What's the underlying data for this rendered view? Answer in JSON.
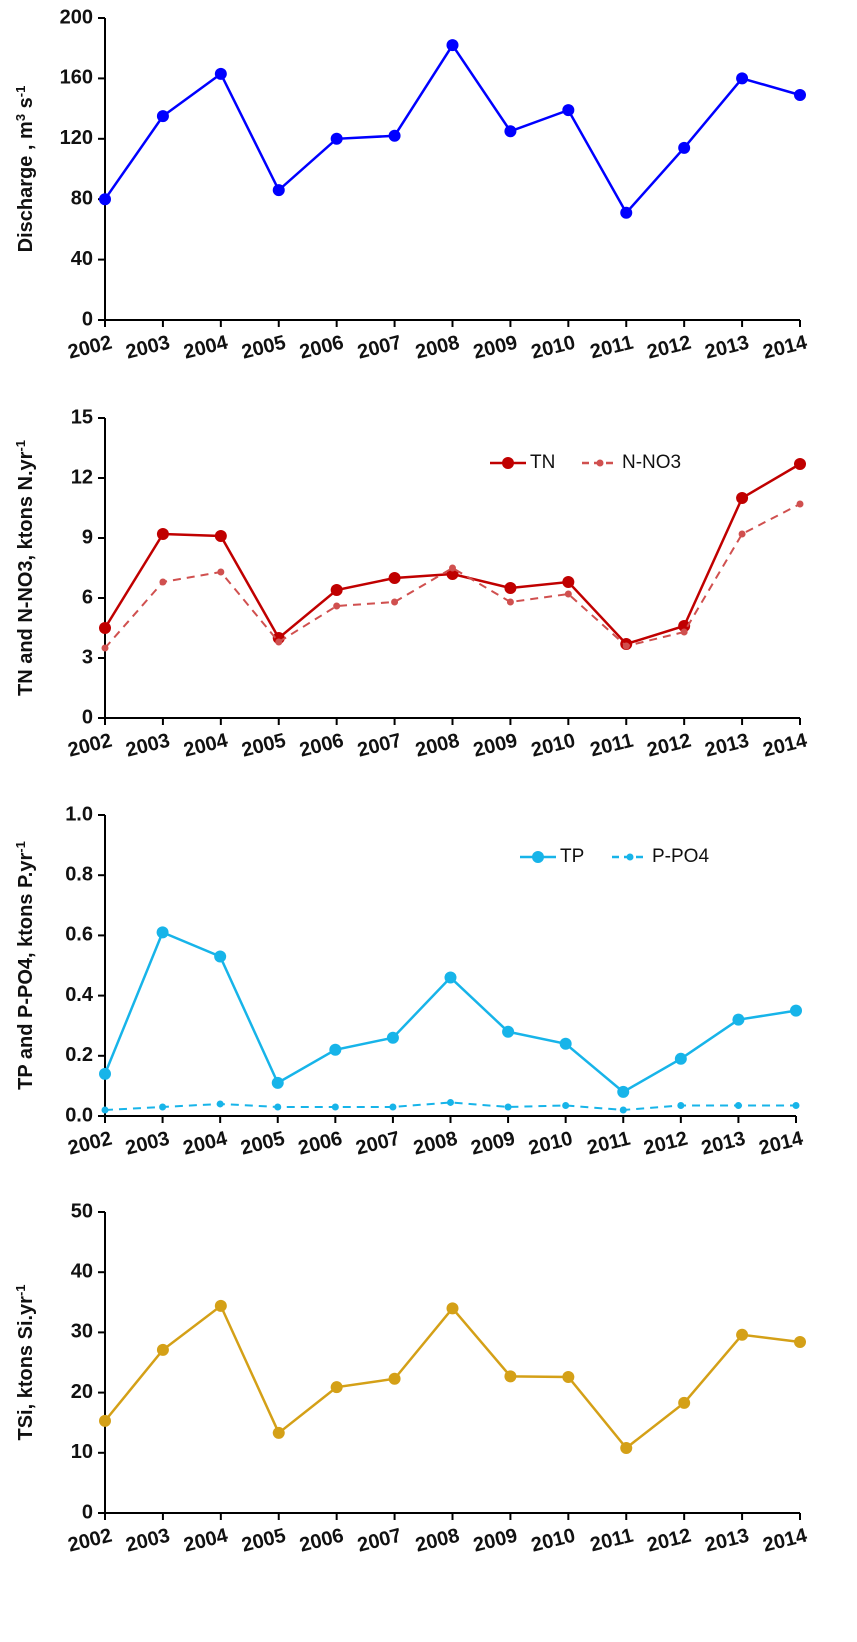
{
  "chart_data": [
    {
      "type": "line",
      "x": [
        "2002",
        "2003",
        "2004",
        "2005",
        "2006",
        "2007",
        "2008",
        "2009",
        "2010",
        "2011",
        "2012",
        "2013",
        "2014"
      ],
      "ylabel": "Discharge , m",
      "ylabel_sup1": "3",
      "ylabel_mid": " s",
      "ylabel_sup2": "-1",
      "ylim": [
        0,
        200
      ],
      "yticks": [
        0,
        40,
        80,
        120,
        160,
        200
      ],
      "series": [
        {
          "values": [
            80,
            135,
            163,
            86,
            120,
            122,
            182,
            125,
            139,
            71,
            114,
            160,
            149
          ],
          "color": "#0000ff",
          "dashed": false
        }
      ]
    },
    {
      "type": "line",
      "x": [
        "2002",
        "2003",
        "2004",
        "2005",
        "2006",
        "2007",
        "2008",
        "2009",
        "2010",
        "2011",
        "2012",
        "2013",
        "2014"
      ],
      "ylabel": "TN and N-NO3, ktons N.yr",
      "ylabel_sup1": "-1",
      "ylim": [
        0,
        15
      ],
      "yticks": [
        0,
        3,
        6,
        9,
        12,
        15
      ],
      "legend_position": "top-right",
      "series": [
        {
          "name": "TN",
          "values": [
            4.5,
            9.2,
            9.1,
            4.0,
            6.4,
            7.0,
            7.2,
            6.5,
            6.8,
            3.7,
            4.6,
            11.0,
            12.7
          ],
          "color": "#c00000",
          "dashed": false
        },
        {
          "name": "N-NO3",
          "values": [
            3.5,
            6.8,
            7.3,
            3.8,
            5.6,
            5.8,
            7.5,
            5.8,
            6.2,
            3.6,
            4.3,
            9.2,
            10.7
          ],
          "color": "#d0504f",
          "dashed": true
        }
      ]
    },
    {
      "type": "line",
      "x": [
        "2002",
        "2003",
        "2004",
        "2005",
        "2006",
        "2007",
        "2008",
        "2009",
        "2010",
        "2011",
        "2012",
        "2013",
        "2014"
      ],
      "ylabel": "TP and P-PO4, ktons P.yr",
      "ylabel_sup1": "-1",
      "ylim": [
        0,
        1.0
      ],
      "yticks": [
        "0.0",
        "0.2",
        "0.4",
        "0.6",
        "0.8",
        "1.0"
      ],
      "legend_position": "top-right",
      "series": [
        {
          "name": "TP",
          "values": [
            0.14,
            0.61,
            0.53,
            0.11,
            0.22,
            0.26,
            0.46,
            0.28,
            0.24,
            0.08,
            0.19,
            0.32,
            0.35
          ],
          "color": "#17b4e9",
          "dashed": false
        },
        {
          "name": "P-PO4",
          "values": [
            0.02,
            0.03,
            0.04,
            0.03,
            0.03,
            0.03,
            0.045,
            0.03,
            0.035,
            0.02,
            0.035,
            0.035,
            0.035
          ],
          "color": "#17b4e9",
          "dashed": true
        }
      ]
    },
    {
      "type": "line",
      "x": [
        "2002",
        "2003",
        "2004",
        "2005",
        "2006",
        "2007",
        "2008",
        "2009",
        "2010",
        "2011",
        "2012",
        "2013",
        "2014"
      ],
      "ylabel": "TSi, ktons Si.yr",
      "ylabel_sup1": "-1",
      "ylim": [
        0,
        50
      ],
      "yticks": [
        0,
        10,
        20,
        30,
        40,
        50
      ],
      "series": [
        {
          "values": [
            15.3,
            27.1,
            34.4,
            13.3,
            20.9,
            22.3,
            34.0,
            22.7,
            22.6,
            10.8,
            18.3,
            29.6,
            28.4
          ],
          "color": "#d4a017",
          "dashed": false
        }
      ]
    }
  ]
}
